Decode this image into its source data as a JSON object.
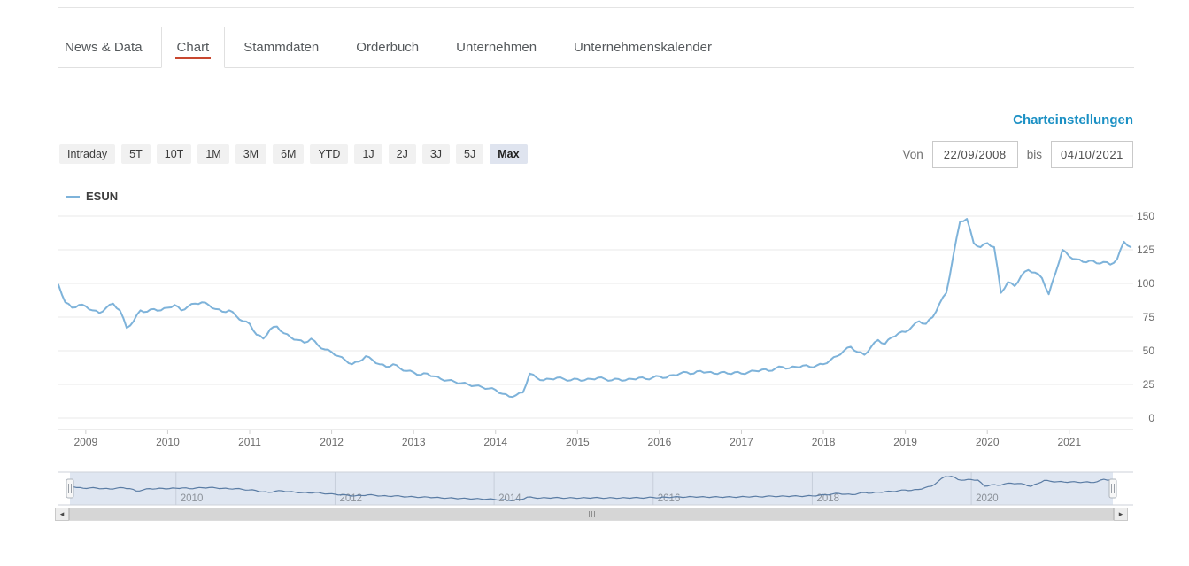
{
  "header": {
    "tabs": [
      {
        "label": "News & Data",
        "active": false
      },
      {
        "label": "Chart",
        "active": true
      },
      {
        "label": "Stammdaten",
        "active": false
      },
      {
        "label": "Orderbuch",
        "active": false
      },
      {
        "label": "Unternehmen",
        "active": false
      },
      {
        "label": "Unternehmenskalender",
        "active": false
      }
    ]
  },
  "chart_settings_link": "Charteinstellungen",
  "range_toolbar": {
    "buttons": [
      "Intraday",
      "5T",
      "10T",
      "1M",
      "3M",
      "6M",
      "YTD",
      "1J",
      "2J",
      "3J",
      "5J",
      "Max"
    ],
    "active": "Max"
  },
  "date_range": {
    "von_label": "Von",
    "von_value": "22/09/2008",
    "bis_label": "bis",
    "bis_value": "04/10/2021"
  },
  "legend": {
    "name": "ESUN",
    "color": "#7eb3da"
  },
  "colors": {
    "accent_red": "#c8472f",
    "link_blue": "#1b90c4",
    "series_blue": "#7eb3da",
    "navigator_line": "#5a7ca4",
    "navigator_fill": "#dfe6f1",
    "gridline": "#e8e8e8"
  },
  "chart_data": {
    "type": "line",
    "title": "",
    "xlabel": "",
    "ylabel": "",
    "ylim": [
      0,
      150
    ],
    "y_ticks": [
      0,
      25,
      50,
      75,
      100,
      125,
      150
    ],
    "x_tick_years": [
      2009,
      2010,
      2011,
      2012,
      2013,
      2014,
      2015,
      2016,
      2017,
      2018,
      2019,
      2020,
      2021
    ],
    "grid": "horizontal",
    "legend_position": "top-left",
    "series": [
      {
        "name": "ESUN",
        "color": "#7eb3da",
        "start": "2008-09",
        "interval": "monthly",
        "values": [
          99,
          86,
          82,
          84,
          83,
          80,
          78,
          82,
          85,
          80,
          67,
          72,
          80,
          79,
          81,
          80,
          82,
          84,
          80,
          83,
          85,
          86,
          84,
          81,
          79,
          80,
          76,
          72,
          70,
          62,
          59,
          66,
          68,
          63,
          60,
          58,
          56,
          59,
          54,
          51,
          49,
          46,
          43,
          40,
          42,
          46,
          43,
          40,
          38,
          40,
          37,
          35,
          34,
          32,
          33,
          31,
          29,
          28,
          27,
          26,
          25,
          24,
          23,
          22,
          21,
          18,
          16,
          17,
          19,
          33,
          30,
          28,
          29,
          30,
          29,
          28,
          29,
          28,
          29,
          30,
          29,
          28,
          29,
          28,
          29,
          30,
          29,
          30,
          31,
          30,
          32,
          33,
          34,
          33,
          35,
          34,
          33,
          34,
          33,
          34,
          33,
          34,
          35,
          36,
          35,
          37,
          38,
          37,
          38,
          39,
          38,
          39,
          40,
          43,
          46,
          50,
          53,
          49,
          47,
          53,
          58,
          55,
          60,
          63,
          64,
          68,
          72,
          70,
          75,
          85,
          93,
          120,
          146,
          148,
          130,
          127,
          130,
          127,
          93,
          101,
          98,
          106,
          110,
          108,
          104,
          92,
          108,
          125,
          120,
          118,
          116,
          117,
          115,
          116,
          114,
          118,
          131,
          127
        ]
      }
    ],
    "navigator": {
      "years": [
        2010,
        2012,
        2014,
        2016,
        2018,
        2020
      ],
      "line_color": "#5a7ca4",
      "fill": "#dfe6f1"
    }
  }
}
